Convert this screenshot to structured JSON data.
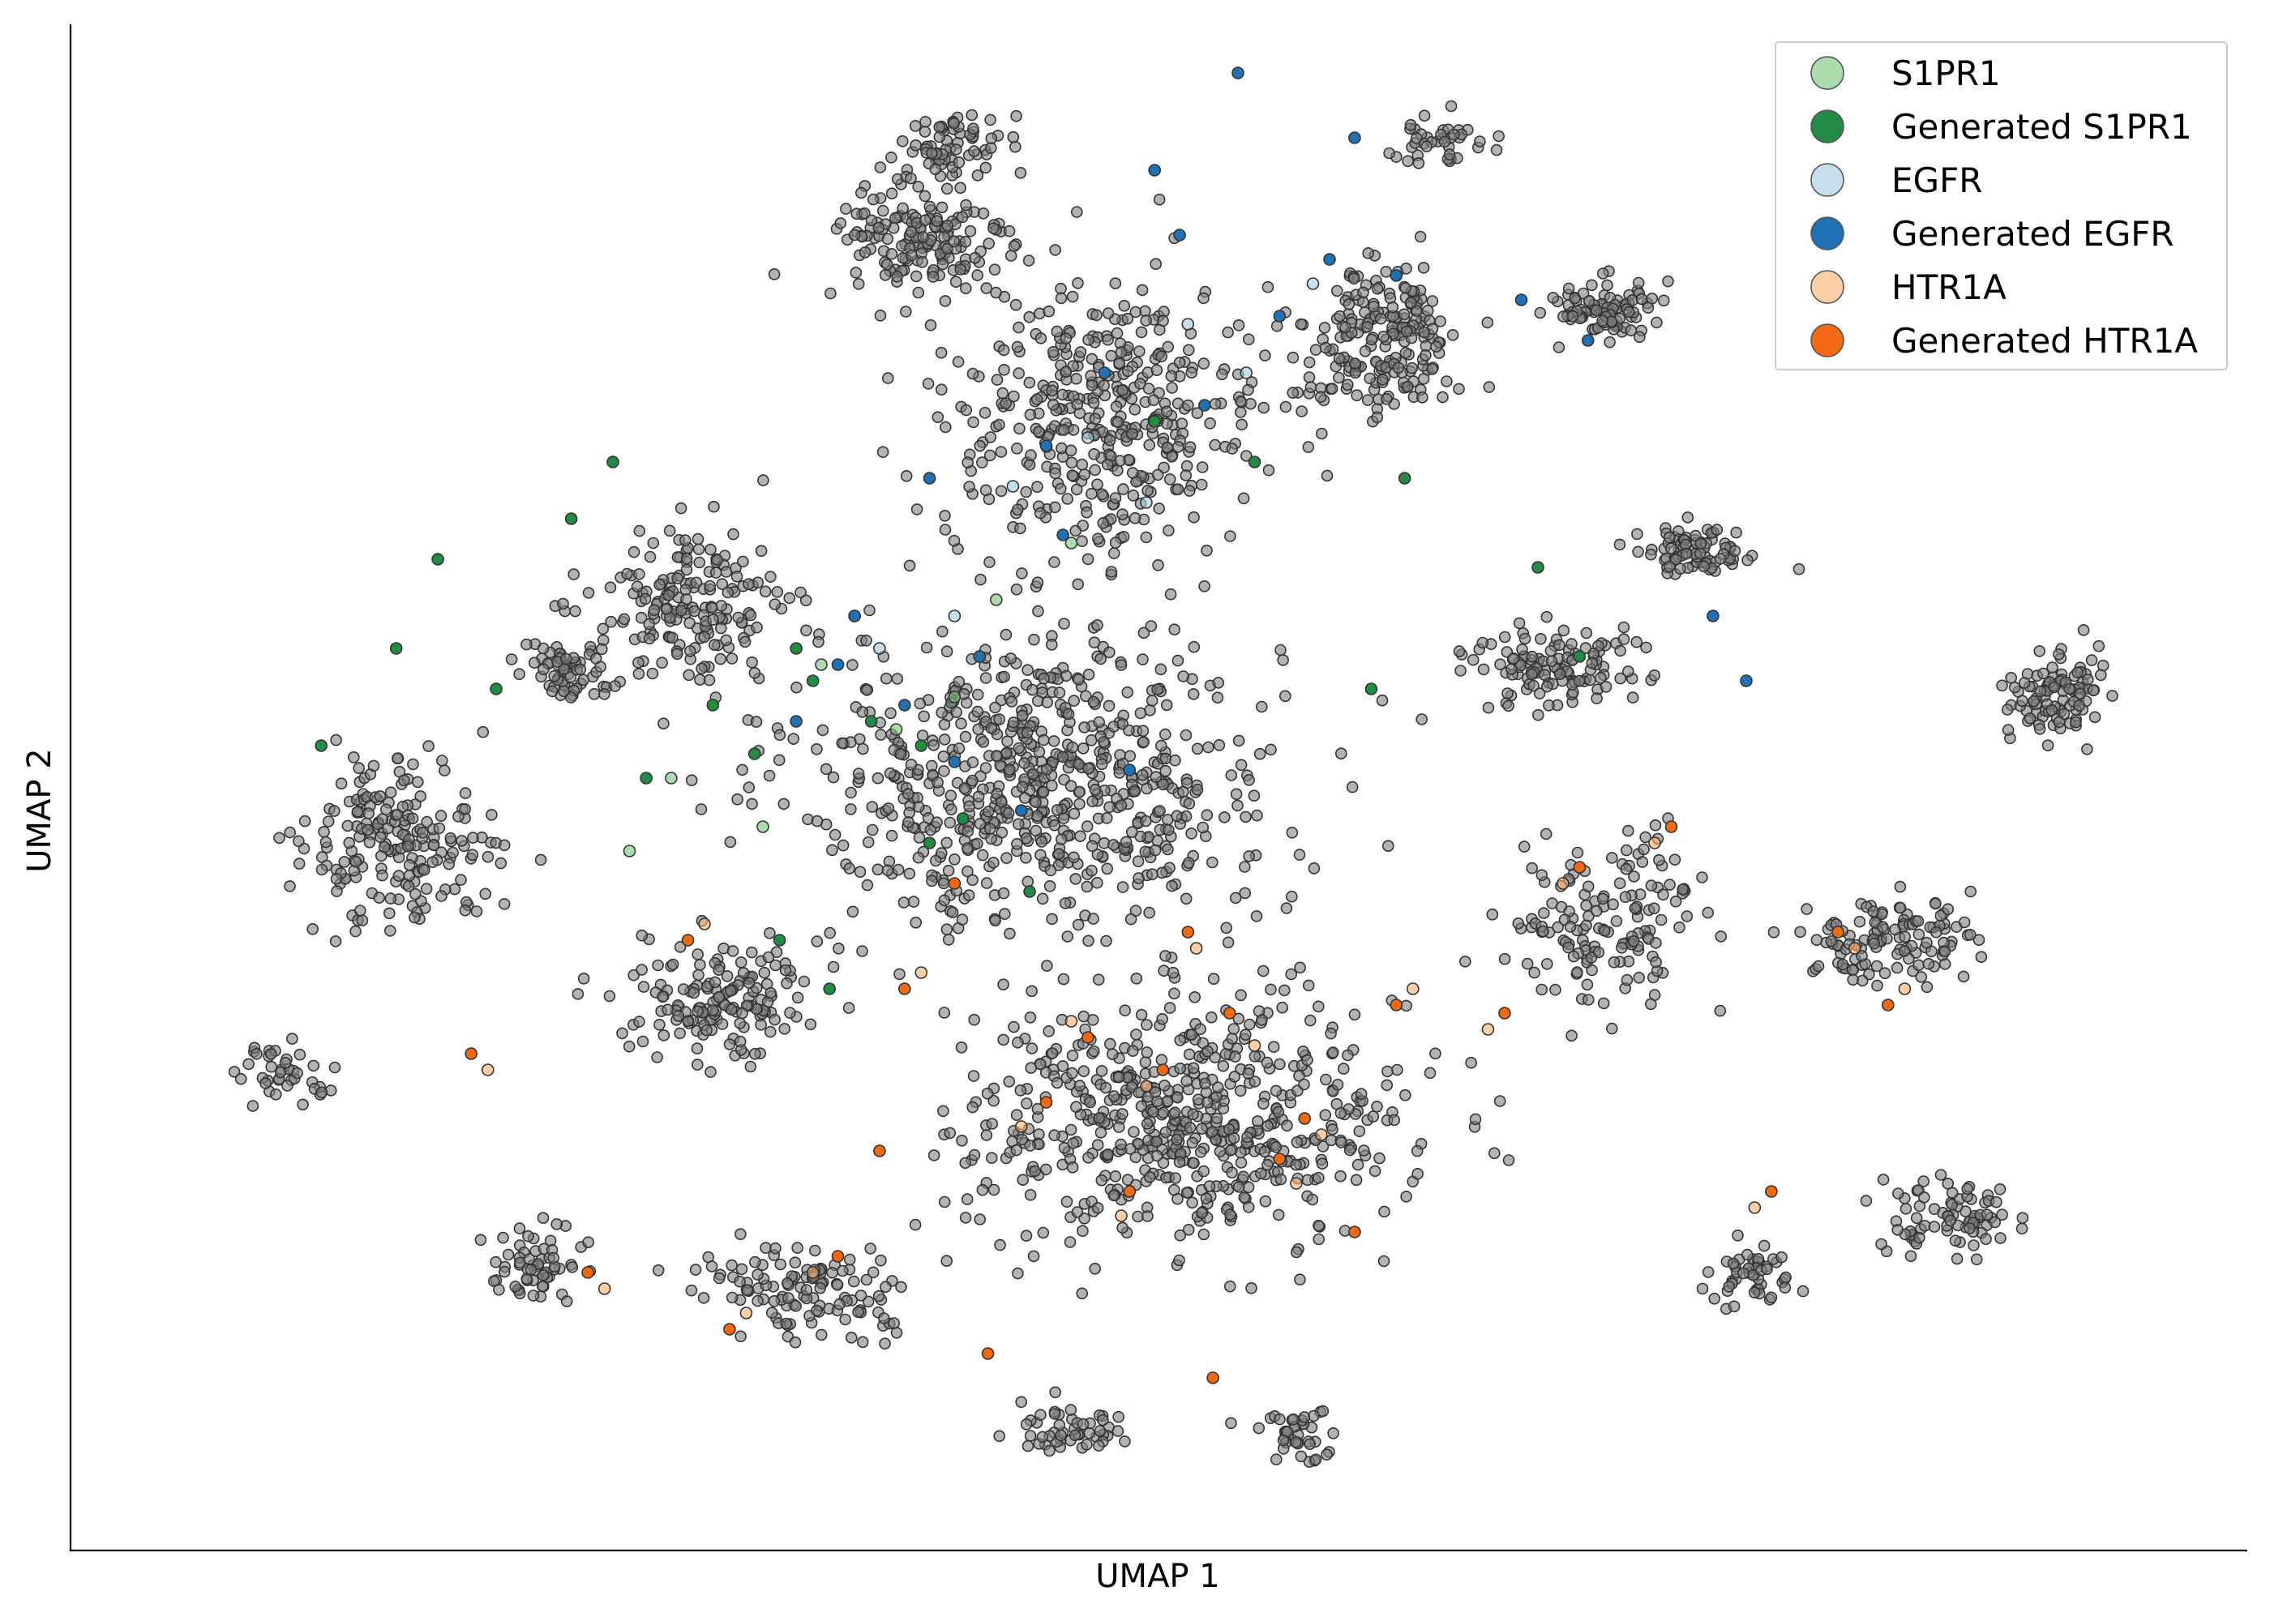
{
  "chart_data": {
    "type": "scatter",
    "title": "",
    "xlabel": "UMAP 1",
    "ylabel": "UMAP 2",
    "grid": false,
    "axes_ticks": "none",
    "legend_placement": "top-right",
    "background_color": "#808080",
    "background_alpha": 0.6,
    "series": [
      {
        "name": "S1PR1",
        "color": "#74c476",
        "alpha": 0.6,
        "x": [
          8.2,
          9.1,
          6.4,
          10.3,
          7.5,
          11.2,
          5.9,
          9.8
        ],
        "y": [
          10.6,
          9.8,
          9.2,
          11.4,
          8.6,
          12.1,
          8.3,
          10.2
        ]
      },
      {
        "name": "Generated S1PR1",
        "color": "#238b45",
        "alpha": 1.0,
        "x": [
          8.1,
          8.8,
          7.9,
          9.4,
          6.9,
          10.1,
          7.4,
          8.6,
          9.9,
          5.2,
          3.6,
          4.3,
          6.1,
          5.7,
          2.2,
          3.1,
          12.2,
          13.4,
          16.8,
          17.3,
          15.2,
          14.8,
          9.5,
          10.7,
          7.7,
          8.3
        ],
        "y": [
          10.4,
          9.9,
          10.8,
          9.6,
          10.1,
          10.7,
          9.5,
          11.2,
          8.7,
          12.4,
          11.9,
          10.3,
          9.2,
          13.1,
          9.6,
          10.8,
          13.6,
          13.1,
          11.8,
          10.7,
          12.9,
          10.3,
          8.4,
          7.8,
          7.2,
          6.6
        ]
      },
      {
        "name": "EGFR",
        "color": "#9ecae1",
        "alpha": 0.6,
        "x": [
          9.8,
          11.4,
          12.6,
          13.3,
          10.5,
          8.9,
          14.1,
          12.1
        ],
        "y": [
          11.2,
          13.4,
          14.8,
          14.2,
          12.8,
          10.8,
          15.3,
          12.6
        ]
      },
      {
        "name": "Generated EGFR",
        "color": "#2171b5",
        "alpha": 1.0,
        "x": [
          8.4,
          9.2,
          8.6,
          9.8,
          10.1,
          7.9,
          10.9,
          11.6,
          12.8,
          13.7,
          14.3,
          15.1,
          12.2,
          13.2,
          16.6,
          17.4,
          18.9,
          19.3,
          11.1,
          9.5,
          10.6,
          11.9,
          14.6,
          12.5
        ],
        "y": [
          10.6,
          10.1,
          11.2,
          9.4,
          10.7,
          9.9,
          13.3,
          14.2,
          13.8,
          14.9,
          15.6,
          15.4,
          16.7,
          17.9,
          15.1,
          14.6,
          11.2,
          10.4,
          12.2,
          12.9,
          8.8,
          9.3,
          17.1,
          15.9
        ]
      },
      {
        "name": "HTR1A",
        "color": "#fdae6b",
        "alpha": 0.6,
        "x": [
          11.2,
          12.1,
          13.4,
          14.2,
          12.7,
          10.6,
          11.8,
          15.3,
          16.2,
          13.9,
          9.4,
          8.1,
          7.3,
          5.6,
          4.2,
          6.8,
          17.1,
          18.2,
          20.6,
          21.2,
          19.4
        ],
        "y": [
          6.2,
          5.4,
          5.9,
          4.8,
          7.1,
          4.9,
          3.8,
          6.6,
          6.1,
          4.2,
          6.8,
          3.1,
          2.6,
          2.9,
          5.6,
          7.4,
          7.9,
          8.4,
          7.1,
          6.6,
          3.9
        ]
      },
      {
        "name": "Generated HTR1A",
        "color": "#f16913",
        "alpha": 1.0,
        "x": [
          11.4,
          12.3,
          13.1,
          14.0,
          12.6,
          10.9,
          11.9,
          15.1,
          16.4,
          13.7,
          9.2,
          8.4,
          7.1,
          5.4,
          4.0,
          6.6,
          17.3,
          18.4,
          20.4,
          21.0,
          19.6,
          14.6,
          10.2,
          12.9,
          9.8,
          8.9
        ],
        "y": [
          6.0,
          5.6,
          6.3,
          5.0,
          7.3,
          5.2,
          4.1,
          6.4,
          6.3,
          4.5,
          6.6,
          3.3,
          2.4,
          3.1,
          5.8,
          7.2,
          8.1,
          8.6,
          7.3,
          6.4,
          4.1,
          3.6,
          2.1,
          1.8,
          7.9,
          4.6
        ]
      }
    ]
  },
  "legend": {
    "items": [
      {
        "label": "S1PR1",
        "color": "#74c476",
        "alpha": 0.6
      },
      {
        "label": "Generated S1PR1",
        "color": "#238b45",
        "alpha": 1.0
      },
      {
        "label": "EGFR",
        "color": "#9ecae1",
        "alpha": 0.6
      },
      {
        "label": "Generated EGFR",
        "color": "#2171b5",
        "alpha": 1.0
      },
      {
        "label": "HTR1A",
        "color": "#fdae6b",
        "alpha": 0.6
      },
      {
        "label": "Generated HTR1A",
        "color": "#f16913",
        "alpha": 1.0
      }
    ]
  }
}
